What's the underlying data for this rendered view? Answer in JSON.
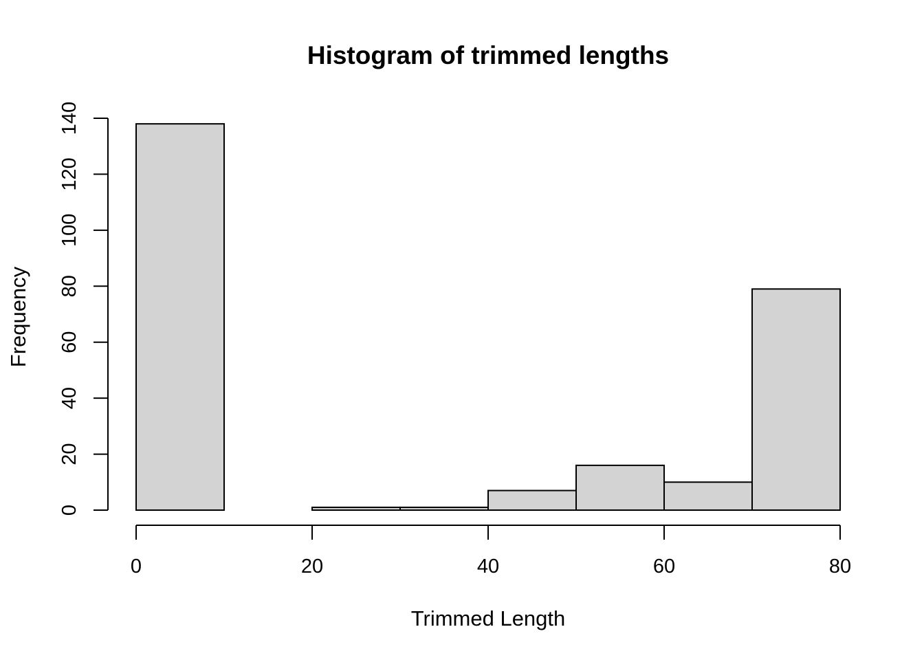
{
  "chart_data": {
    "type": "bar",
    "title": "Histogram of trimmed lengths",
    "xlabel": "Trimmed Length",
    "ylabel": "Frequency",
    "bins": [
      {
        "start": 0,
        "end": 10,
        "count": 138
      },
      {
        "start": 10,
        "end": 20,
        "count": 0
      },
      {
        "start": 20,
        "end": 30,
        "count": 1
      },
      {
        "start": 30,
        "end": 40,
        "count": 1
      },
      {
        "start": 40,
        "end": 50,
        "count": 7
      },
      {
        "start": 50,
        "end": 60,
        "count": 16
      },
      {
        "start": 60,
        "end": 70,
        "count": 10
      },
      {
        "start": 70,
        "end": 80,
        "count": 79
      }
    ],
    "xlim": [
      0,
      80
    ],
    "ylim": [
      0,
      140
    ],
    "x_ticks": [
      "0",
      "20",
      "40",
      "60",
      "80"
    ],
    "y_ticks": [
      "0",
      "20",
      "40",
      "60",
      "80",
      "100",
      "120",
      "140"
    ],
    "bar_color": "#d3d3d3",
    "grid": false,
    "legend": "none"
  }
}
